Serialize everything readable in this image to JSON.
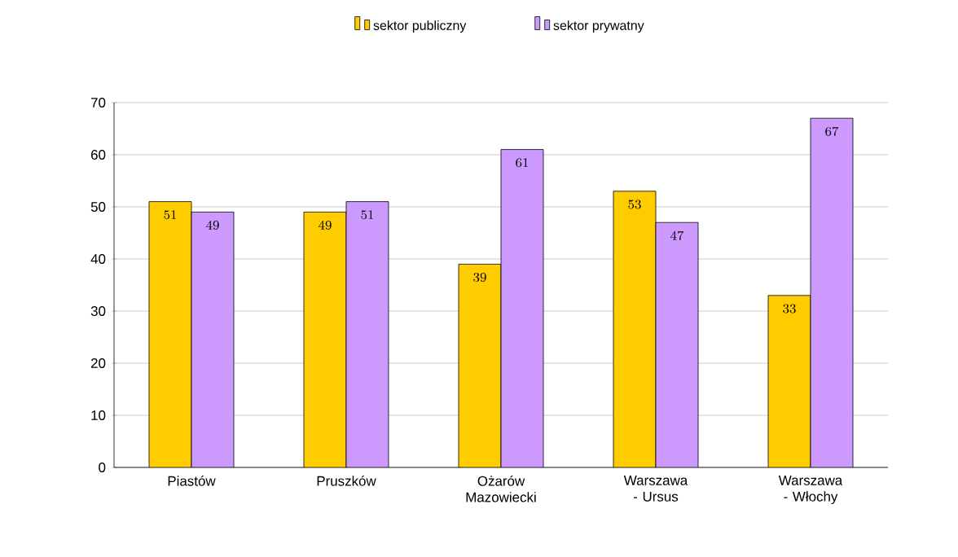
{
  "chart_data": {
    "type": "bar",
    "categories": [
      "Piastów",
      "Pruszków",
      "Ożarów Mazowiecki",
      "Warszawa - Ursus",
      "Warszawa - Włochy"
    ],
    "series": [
      {
        "name": "sektor publiczny",
        "color": "#ffcc00",
        "values": [
          51,
          49,
          39,
          53,
          33
        ]
      },
      {
        "name": "sektor prywatny",
        "color": "#cc99ff",
        "values": [
          49,
          51,
          61,
          47,
          67
        ]
      }
    ],
    "ylim": [
      0,
      70
    ],
    "yticks": [
      0,
      10,
      20,
      30,
      40,
      50,
      60,
      70
    ],
    "grid": "y",
    "legend": "top",
    "data_labels": true
  }
}
